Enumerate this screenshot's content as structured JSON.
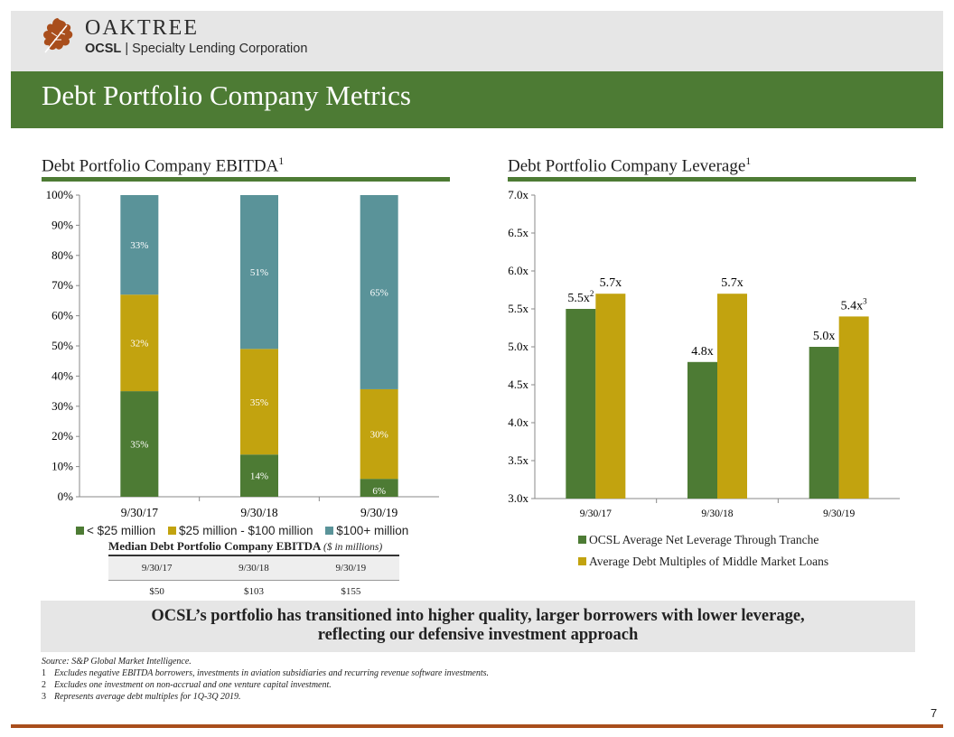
{
  "header": {
    "brand_name": "OAKTREE",
    "brand_ticker": "OCSL",
    "brand_separator": "|",
    "brand_company": "Specialty Lending Corporation",
    "page_title": "Debt Portfolio Company Metrics"
  },
  "left_panel": {
    "title": "Debt Portfolio Company EBITDA",
    "title_sup": "1",
    "legend": [
      {
        "label": "< $25 million",
        "color": "#4d7b34"
      },
      {
        "label": "$25 million - $100 million",
        "color": "#c2a30f"
      },
      {
        "label": "$100+ million",
        "color": "#5a9399"
      }
    ]
  },
  "right_panel": {
    "title": "Debt Portfolio Company Leverage",
    "title_sup": "1",
    "legend": [
      {
        "label": "OCSL Average Net Leverage Through Tranche",
        "color": "#4d7b34"
      },
      {
        "label": "Average Debt Multiples of Middle Market Loans",
        "color": "#c2a30f"
      }
    ]
  },
  "median_table": {
    "title": "Median Debt Portfolio Company EBITDA",
    "title_note": "($ in millions)",
    "headers": [
      "9/30/17",
      "9/30/18",
      "9/30/19"
    ],
    "values": [
      "$50",
      "$103",
      "$155"
    ]
  },
  "chart_data": [
    {
      "type": "bar",
      "stacked": true,
      "categories": [
        "9/30/17",
        "9/30/18",
        "9/30/19"
      ],
      "series": [
        {
          "name": "< $25 million",
          "values": [
            35,
            14,
            6
          ],
          "labels": [
            "35%",
            "14%",
            "6%"
          ],
          "color": "#4d7b34"
        },
        {
          "name": "$25 million - $100 million",
          "values": [
            32,
            35,
            30
          ],
          "labels": [
            "32%",
            "35%",
            "30%"
          ],
          "color": "#c2a30f"
        },
        {
          "name": "$100+ million",
          "values": [
            33,
            51,
            65
          ],
          "labels": [
            "33%",
            "51%",
            "65%"
          ],
          "color": "#5a9399"
        }
      ],
      "ylim": [
        0,
        100
      ],
      "yticks": [
        "0%",
        "10%",
        "20%",
        "30%",
        "40%",
        "50%",
        "60%",
        "70%",
        "80%",
        "90%",
        "100%"
      ],
      "legend": "bottom",
      "grid": false
    },
    {
      "type": "bar",
      "categories": [
        "9/30/17",
        "9/30/18",
        "9/30/19"
      ],
      "series": [
        {
          "name": "OCSL Average Net Leverage Through Tranche",
          "values": [
            5.5,
            4.8,
            5.0
          ],
          "labels": [
            "5.5x",
            "4.8x",
            "5.0x"
          ],
          "label_sups": [
            "2",
            "",
            ""
          ],
          "color": "#4d7b34"
        },
        {
          "name": "Average Debt Multiples of Middle Market Loans",
          "values": [
            5.7,
            5.7,
            5.4
          ],
          "labels": [
            "5.7x",
            "5.7x",
            "5.4x"
          ],
          "label_sups": [
            "",
            "",
            "3"
          ],
          "color": "#c2a30f"
        }
      ],
      "ylim": [
        3.0,
        7.0
      ],
      "yticks": [
        "3.0x",
        "3.5x",
        "4.0x",
        "4.5x",
        "5.0x",
        "5.5x",
        "6.0x",
        "6.5x",
        "7.0x"
      ],
      "legend": "bottom",
      "grid": false
    }
  ],
  "callout": {
    "line1": "OCSL’s portfolio has transitioned into higher quality, larger borrowers with lower leverage,",
    "line2": "reflecting our defensive investment approach"
  },
  "footnotes": {
    "source": "Source: S&P Global Market Intelligence.",
    "notes": [
      {
        "num": "1",
        "text": "Excludes negative EBITDA borrowers, investments in aviation subsidiaries and recurring revenue software investments."
      },
      {
        "num": "2",
        "text": "Excludes one investment on non-accrual and one venture capital investment."
      },
      {
        "num": "3",
        "text": "Represents average debt multiples for 1Q-3Q 2019."
      }
    ]
  },
  "page_number": "7"
}
